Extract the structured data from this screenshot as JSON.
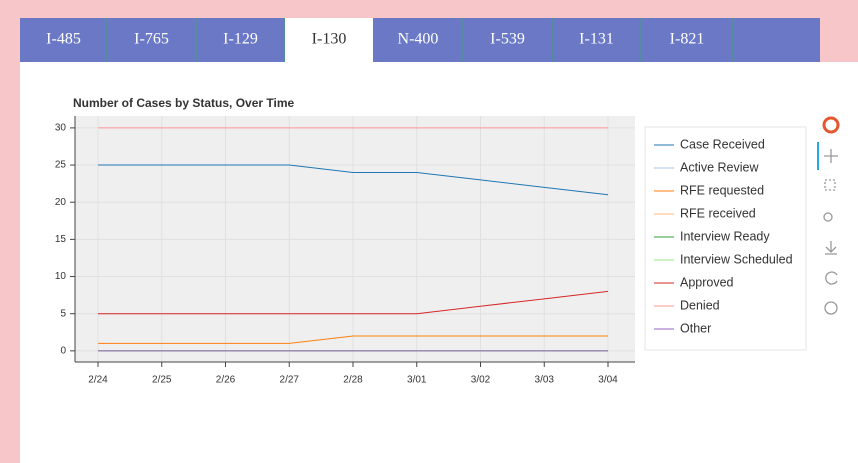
{
  "tabs": {
    "items": [
      "I-485",
      "I-765",
      "I-129",
      "I-130",
      "N-400",
      "I-539",
      "I-131",
      "I-821"
    ],
    "active": 3
  },
  "chart_data": {
    "type": "line",
    "title": "Number of Cases by Status, Over Time",
    "categories": [
      "2/24",
      "2/25",
      "2/26",
      "2/27",
      "2/28",
      "3/01",
      "3/02",
      "3/03",
      "3/04"
    ],
    "series": [
      {
        "name": "Case Received",
        "color": "#1f77b4",
        "values": [
          25,
          25,
          25,
          25,
          24,
          24,
          23,
          22,
          21
        ]
      },
      {
        "name": "Active Review",
        "color": "#aec7e8",
        "values": [
          0,
          0,
          0,
          0,
          0,
          0,
          0,
          0,
          0
        ]
      },
      {
        "name": "RFE requested",
        "color": "#ff7f0e",
        "values": [
          1,
          1,
          1,
          1,
          2,
          2,
          2,
          2,
          2
        ]
      },
      {
        "name": "RFE received",
        "color": "#ffbb78",
        "values": [
          0,
          0,
          0,
          0,
          0,
          0,
          0,
          0,
          0
        ]
      },
      {
        "name": "Interview Ready",
        "color": "#2ca02c",
        "values": [
          0,
          0,
          0,
          0,
          0,
          0,
          0,
          0,
          0
        ]
      },
      {
        "name": "Interview Scheduled",
        "color": "#98df8a",
        "values": [
          0,
          0,
          0,
          0,
          0,
          0,
          0,
          0,
          0
        ]
      },
      {
        "name": "Approved",
        "color": "#d62728",
        "values": [
          5,
          5,
          5,
          5,
          5,
          5,
          6,
          7,
          8
        ]
      },
      {
        "name": "Denied",
        "color": "#ff9896",
        "values": [
          30,
          30,
          30,
          30,
          30,
          30,
          30,
          30,
          30
        ]
      },
      {
        "name": "Other",
        "color": "#9467bd",
        "values": [
          0,
          0,
          0,
          0,
          0,
          0,
          0,
          0,
          0
        ]
      }
    ],
    "ylim": [
      -1.5,
      31.6
    ],
    "yticks": [
      0,
      5,
      10,
      15,
      20,
      25,
      30
    ],
    "grid": true,
    "legend": "right"
  }
}
